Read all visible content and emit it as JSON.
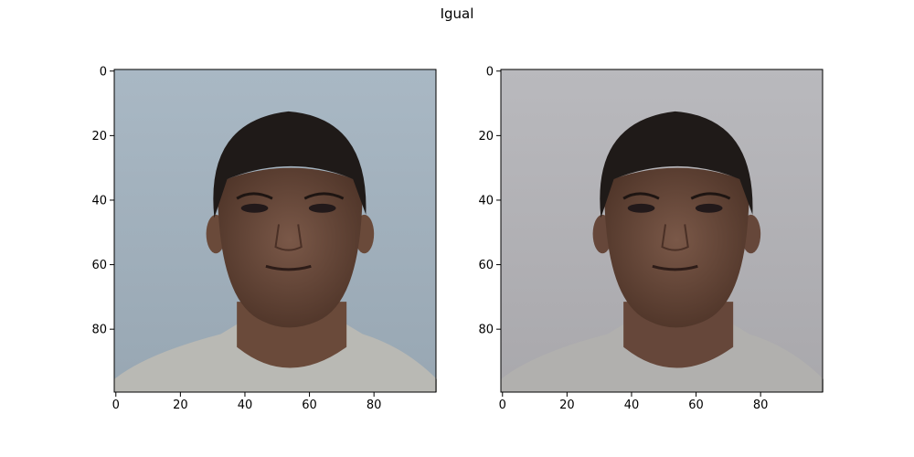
{
  "figure": {
    "title": "Igual"
  },
  "panels": [
    {
      "bg_top": "#a9b8c4",
      "bg_bottom": "#98a7b3",
      "shirt": "#b9b9b4",
      "skin": "#6a4a3a",
      "hair": "#1f1a18",
      "x_ticks": [
        "0",
        "20",
        "40",
        "60",
        "80"
      ],
      "y_ticks": [
        "0",
        "20",
        "40",
        "60",
        "80"
      ]
    },
    {
      "bg_top": "#b9b9bd",
      "bg_bottom": "#a9a8ac",
      "shirt": "#b1b0ae",
      "skin": "#66473a",
      "hair": "#1f1a18",
      "x_ticks": [
        "0",
        "20",
        "40",
        "60",
        "80"
      ],
      "y_ticks": [
        "0",
        "20",
        "40",
        "60",
        "80"
      ]
    }
  ]
}
